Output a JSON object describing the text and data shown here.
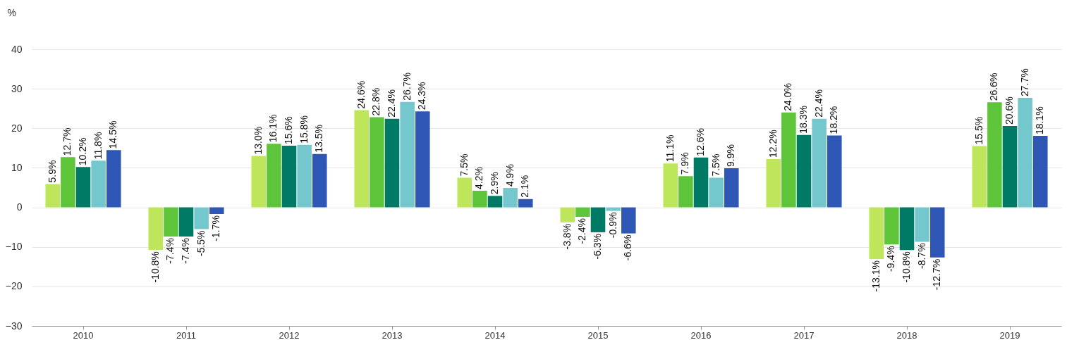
{
  "chart_data": {
    "type": "bar",
    "ylabel": "%",
    "categories": [
      "2010",
      "2011",
      "2012",
      "2013",
      "2014",
      "2015",
      "2016",
      "2017",
      "2018",
      "2019"
    ],
    "series": [
      {
        "color": "#bde65a",
        "values": [
          5.9,
          -10.8,
          13.0,
          24.6,
          7.5,
          -3.8,
          11.1,
          12.2,
          -13.1,
          15.5
        ],
        "value_labels": [
          "5.9%",
          "-10.8%",
          "13.0%",
          "24.6%",
          "7.5%",
          "-3.8%",
          "11.1%",
          "12.2%",
          "-13.1%",
          "15.5%"
        ]
      },
      {
        "color": "#5ec43a",
        "values": [
          12.7,
          -7.4,
          16.1,
          22.8,
          4.2,
          -2.4,
          7.9,
          24.0,
          -9.4,
          26.6
        ],
        "value_labels": [
          "12.7%",
          "-7.4%",
          "16.1%",
          "22.8%",
          "4.2%",
          "-2.4%",
          "7.9%",
          "24.0%",
          "-9.4%",
          "26.6%"
        ]
      },
      {
        "color": "#007a65",
        "values": [
          10.2,
          -7.4,
          15.6,
          22.4,
          2.9,
          -6.3,
          12.6,
          18.3,
          -10.8,
          20.6
        ],
        "value_labels": [
          "10.2%",
          "-7.4%",
          "15.6%",
          "22.4%",
          "2.9%",
          "-6.3%",
          "12.6%",
          "18.3%",
          "-10.8%",
          "20.6%"
        ]
      },
      {
        "color": "#74c7cc",
        "values": [
          11.8,
          -5.5,
          15.8,
          26.7,
          4.9,
          -0.9,
          7.5,
          22.4,
          -8.7,
          27.7
        ],
        "value_labels": [
          "11.8%",
          "-5.5%",
          "15.8%",
          "26.7%",
          "4.9%",
          "-0.9%",
          "7.5%",
          "22.4%",
          "-8.7%",
          "27.7%"
        ]
      },
      {
        "color": "#2e56b4",
        "values": [
          14.5,
          -1.7,
          13.5,
          24.3,
          2.1,
          -6.6,
          9.9,
          18.2,
          -12.7,
          18.1
        ],
        "value_labels": [
          "14.5%",
          "-1.7%",
          "13.5%",
          "24.3%",
          "2.1%",
          "-6.6%",
          "9.9%",
          "18.2%",
          "-12.7%",
          "18.1%"
        ]
      }
    ],
    "ylim": [
      -30,
      40
    ],
    "yticks": [
      -30,
      -20,
      -10,
      0,
      10,
      20,
      30,
      40
    ],
    "grid": "y"
  }
}
